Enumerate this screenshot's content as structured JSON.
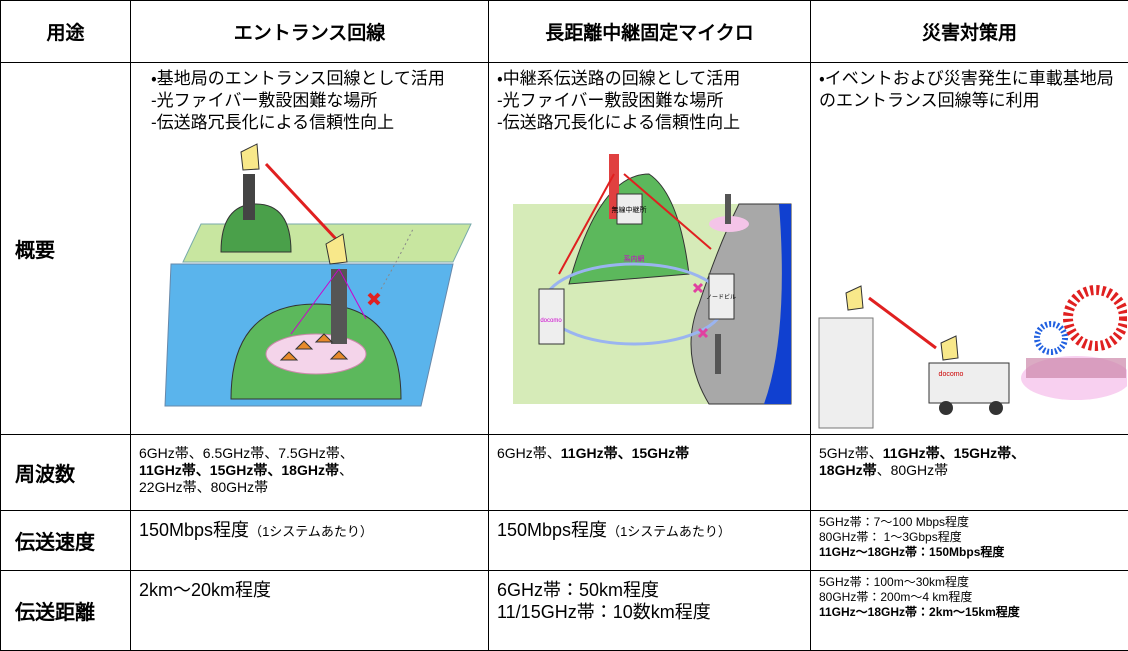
{
  "table": {
    "header": [
      "用途",
      "エントランス回線",
      "長距離中継固定マイクロ",
      "災害対策用"
    ],
    "rows": [
      {
        "label": "概要",
        "cells": [
          [
            [
              "・基地局のエントランス回線として活用"
            ],
            [
              "-光ファイバー敷設困難な場所"
            ],
            [
              "-伝送路冗長化による信頼性向上"
            ]
          ],
          [
            [
              "・中継系伝送路の回線として活用"
            ],
            [
              "-光ファイバー敷設困難な場所"
            ],
            [
              "-伝送路冗長化による信頼性向上"
            ]
          ],
          [
            [
              "・イベントおよび災害発生に車載基地局のエントランス回線等に利用"
            ]
          ]
        ]
      },
      {
        "label": "周波数",
        "cells": [
          [
            [
              "6GHz帯、6.5GHz帯、7.5GHz帯、"
            ],
            [
              "11GHz帯、15GHz帯、18GHz帯",
              "、"
            ],
            [
              "22GHz帯、80GHz帯"
            ]
          ],
          [
            [
              "6GHz帯、",
              "11GHz帯、15GHz帯"
            ]
          ],
          [
            [
              "5GHz帯、",
              "11GHz帯、15GHz帯、"
            ],
            [
              "18GHz帯",
              "、80GHz帯"
            ]
          ]
        ]
      },
      {
        "label": "伝送速度",
        "cells": [
          [
            [
              "150Mbps程度",
              "（1システムあたり）"
            ]
          ],
          [
            [
              "150Mbps程度",
              "（1システムあたり）"
            ]
          ],
          [
            [
              "5GHz帯：7～100 Mbps程度"
            ],
            [
              "80GHz帯： 1～3Gbps程度"
            ],
            [
              "11GHz～18GHz帯：150Mbps程度"
            ]
          ]
        ]
      },
      {
        "label": "伝送距離",
        "cells": [
          [
            [
              "2km～20km程度"
            ]
          ],
          [
            [
              "6GHz帯：50km程度"
            ],
            [
              "11/15GHz帯：10数km程度"
            ]
          ],
          [
            [
              "5GHz帯：100m～30km程度"
            ],
            [
              "80GHz帯：200m～4 km程度"
            ],
            [
              "11GHz～18GHz帯：2km～15km程度"
            ]
          ]
        ]
      }
    ]
  },
  "illustrations": {
    "relay_station": "無線中継所",
    "network": "系内網",
    "node_building": "ノードビル",
    "operator": "docomo",
    "van": "docomo"
  }
}
